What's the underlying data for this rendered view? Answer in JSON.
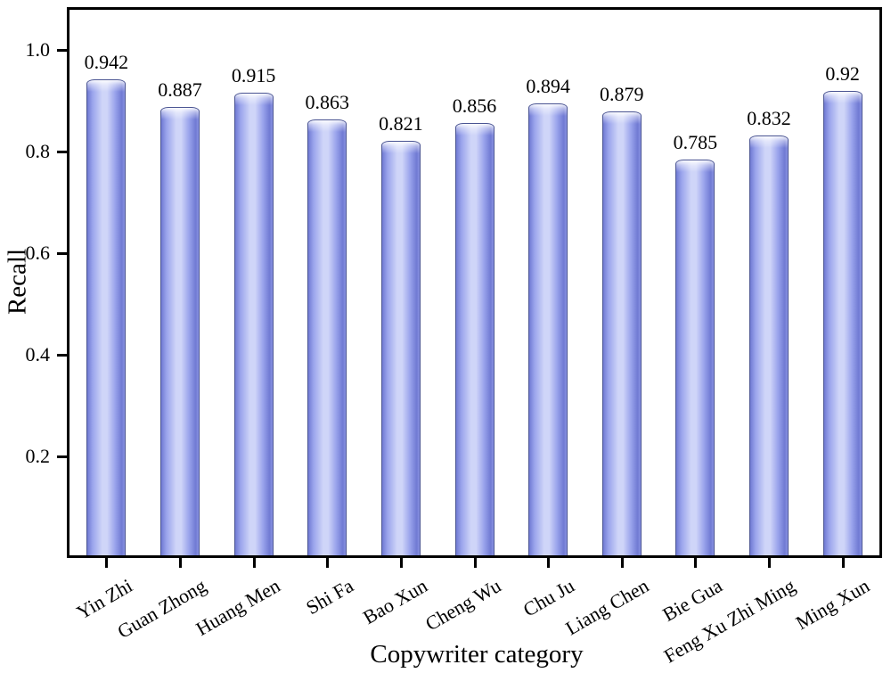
{
  "chart_data": {
    "type": "bar",
    "title": "",
    "xlabel": "Copywriter category",
    "ylabel": "Recall",
    "categories": [
      "Yin Zhi",
      "Guan Zhong",
      "Huang Men",
      "Shi Fa",
      "Bao Xun",
      "Cheng Wu",
      "Chu Ju",
      "Liang Chen",
      "Bie Gua",
      "Feng Xu Zhi Ming",
      "Ming Xun"
    ],
    "values": [
      0.942,
      0.887,
      0.915,
      0.863,
      0.821,
      0.856,
      0.894,
      0.879,
      0.785,
      0.832,
      0.92
    ],
    "value_labels": [
      "0.942",
      "0.887",
      "0.915",
      "0.863",
      "0.821",
      "0.856",
      "0.894",
      "0.879",
      "0.785",
      "0.832",
      "0.92"
    ],
    "ytick_labels": [
      "0.2",
      "0.4",
      "0.6",
      "0.8",
      "1.0"
    ],
    "ytick_values": [
      0.2,
      0.4,
      0.6,
      0.8,
      1.0
    ],
    "ylim": [
      0,
      1.08
    ],
    "grid": "off",
    "legend": "none",
    "colors": {
      "bar_edge": "#4a5492",
      "bar_dark": "#707ad3",
      "bar_mid": "#9aa4ec",
      "bar_light": "#cfd5f8",
      "bar_cap_highlight": "#ffffff",
      "axis": "#000000",
      "text": "#000000"
    }
  }
}
